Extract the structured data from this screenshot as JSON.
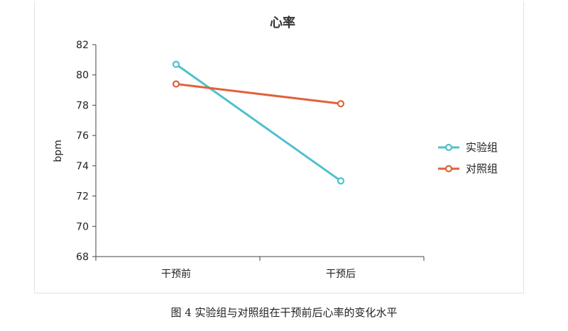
{
  "chart_data": {
    "type": "line",
    "title": "心率",
    "xlabel": "",
    "ylabel": "bpm",
    "categories": [
      "干预前",
      "干预后"
    ],
    "ylim": [
      68,
      82
    ],
    "yticks": [
      68,
      70,
      72,
      74,
      76,
      78,
      80,
      82
    ],
    "grid": false,
    "legend_position": "right",
    "series": [
      {
        "name": "实验组",
        "values": [
          80.7,
          73.0
        ],
        "color": "#4fc1cf"
      },
      {
        "name": "对照组",
        "values": [
          79.4,
          78.1
        ],
        "color": "#e0623b"
      }
    ]
  },
  "caption": "图 4 实验组与对照组在干预前后心率的变化水平"
}
